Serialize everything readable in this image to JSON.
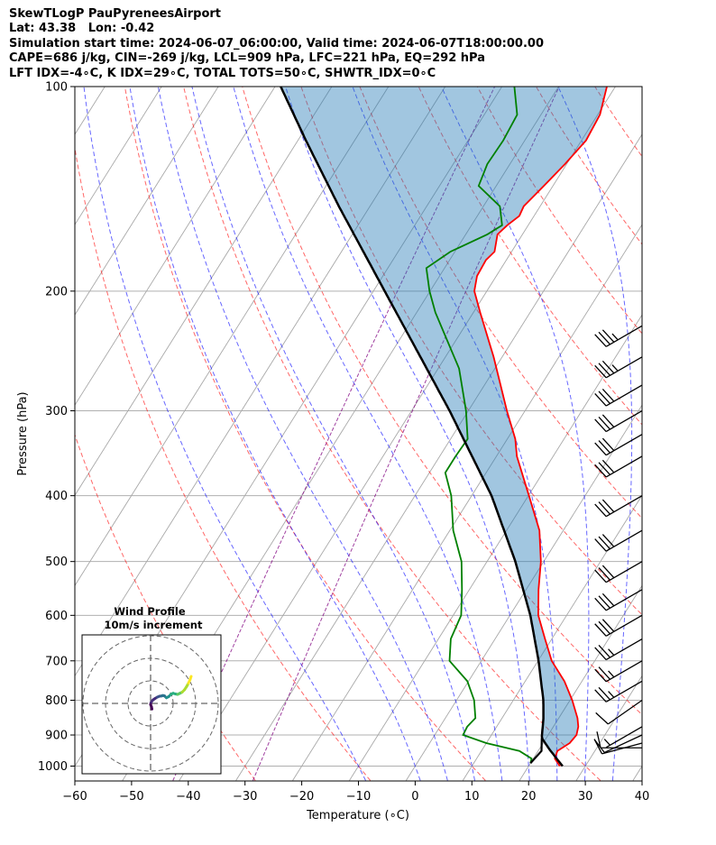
{
  "header": {
    "line1": "SkewTLogP PauPyreneesAirport",
    "line2": "Lat: 43.38   Lon: -0.42",
    "line3": "Simulation start time: 2024-06-07_06:00:00, Valid time: 2024-06-07T18:00:00.00",
    "line4": "CAPE=686 j/kg, CIN=-269 j/kg, LCL=909 hPa, LFC=221 hPa, EQ=292 hPa",
    "line5": "LFT IDX=-4∘C, K IDX=29∘C, TOTAL TOTS=50∘C, SHWTR_IDX=0∘C"
  },
  "colors": {
    "temperature": "#ff0000",
    "dewpoint": "#008000",
    "parcel": "#000000",
    "cape_fill": "#e8595c",
    "cin_fill": "#1f77b4",
    "dry_adiabat": "#ff0000",
    "moist_adiabat": "#0000ff",
    "mixing_ratio": "#800080",
    "isotherm": "#808080"
  },
  "chart_data": {
    "type": "skewt",
    "title": "SkewTLogP PauPyreneesAirport",
    "xlabel": "Temperature (∘C)",
    "ylabel": "Pressure (hPa)",
    "xlim": [
      -60,
      40
    ],
    "ylim": [
      1050,
      100
    ],
    "x_ticks": [
      "−60",
      "−50",
      "−40",
      "−30",
      "−20",
      "−10",
      "0",
      "10",
      "20",
      "30",
      "40"
    ],
    "x_tick_values": [
      -60,
      -50,
      -40,
      -30,
      -20,
      -10,
      0,
      10,
      20,
      30,
      40
    ],
    "y_ticks": [
      "100",
      "200",
      "300",
      "400",
      "500",
      "600",
      "700",
      "800",
      "900",
      "1000"
    ],
    "y_tick_values": [
      100,
      200,
      300,
      400,
      500,
      600,
      700,
      800,
      900,
      1000
    ],
    "skew_deg_per_log": 32.7,
    "dry_adiabats_theta_C": [
      -30,
      -10,
      10,
      30,
      50,
      70,
      90,
      110,
      130,
      150,
      170,
      190,
      210
    ],
    "moist_adiabats_C": [
      -10,
      0,
      5,
      10,
      15,
      20,
      25,
      30,
      35
    ],
    "mixing_ratio_lines_gkg": [
      0.1,
      0.4
    ],
    "temperature": {
      "pressure": [
        1000,
        975,
        950,
        925,
        900,
        875,
        850,
        800,
        750,
        700,
        650,
        600,
        550,
        500,
        450,
        400,
        350,
        330,
        300,
        250,
        215,
        200,
        190,
        180,
        175,
        165,
        160,
        155,
        150,
        140,
        130,
        120,
        110,
        100
      ],
      "temp": [
        25.5,
        23.8,
        23.4,
        24.7,
        25.0,
        24.4,
        23.3,
        20.4,
        16.9,
        12.4,
        8.8,
        5.0,
        2.2,
        -0.5,
        -4.2,
        -9.9,
        -16.4,
        -18.6,
        -23.2,
        -31.5,
        -38.8,
        -42.2,
        -43.4,
        -43.6,
        -43.0,
        -44.4,
        -43.7,
        -42.6,
        -42.9,
        -41.6,
        -40.3,
        -39.2,
        -39.6,
        -41.5
      ]
    },
    "dewpoint": {
      "pressure": [
        990,
        975,
        950,
        925,
        900,
        875,
        850,
        800,
        750,
        700,
        650,
        600,
        550,
        500,
        450,
        400,
        370,
        350,
        330,
        300,
        260,
        215,
        200,
        185,
        175,
        165,
        160,
        150,
        140,
        130,
        120,
        110,
        100
      ],
      "dewpt": [
        20.0,
        19.7,
        16.7,
        10.0,
        5.0,
        4.8,
        5.3,
        3.1,
        -0.2,
        -5.6,
        -7.8,
        -8.6,
        -11.3,
        -14.5,
        -19.4,
        -23.6,
        -27.2,
        -27.2,
        -27.0,
        -30.4,
        -36.3,
        -46.7,
        -50.1,
        -53.2,
        -50.8,
        -46.2,
        -44.6,
        -47.1,
        -53.1,
        -54.0,
        -53.8,
        -54.2,
        -57.8
      ]
    },
    "parcel": {
      "pressure": [
        1000,
        950,
        909,
        850,
        800,
        700,
        600,
        500,
        400,
        300,
        250,
        200,
        150,
        120,
        100
      ],
      "temp": [
        26.0,
        22.2,
        19.2,
        17.3,
        15.3,
        10.1,
        3.6,
        -5.0,
        -16.5,
        -33.3,
        -44.4,
        -58.0,
        -75.5,
        -88.6,
        -99.0
      ]
    },
    "wind_barbs": [
      {
        "pressure": 940,
        "dir_deg": 270,
        "speed_kt": 10
      },
      {
        "pressure": 925,
        "dir_deg": 255,
        "speed_kt": 10
      },
      {
        "pressure": 900,
        "dir_deg": 245,
        "speed_kt": 10
      },
      {
        "pressure": 875,
        "dir_deg": 240,
        "speed_kt": 5
      },
      {
        "pressure": 800,
        "dir_deg": 235,
        "speed_kt": 10
      },
      {
        "pressure": 750,
        "dir_deg": 240,
        "speed_kt": 25
      },
      {
        "pressure": 700,
        "dir_deg": 240,
        "speed_kt": 25
      },
      {
        "pressure": 650,
        "dir_deg": 240,
        "speed_kt": 25
      },
      {
        "pressure": 600,
        "dir_deg": 240,
        "speed_kt": 30
      },
      {
        "pressure": 550,
        "dir_deg": 240,
        "speed_kt": 30
      },
      {
        "pressure": 500,
        "dir_deg": 240,
        "speed_kt": 30
      },
      {
        "pressure": 450,
        "dir_deg": 240,
        "speed_kt": 30
      },
      {
        "pressure": 400,
        "dir_deg": 240,
        "speed_kt": 30
      },
      {
        "pressure": 350,
        "dir_deg": 240,
        "speed_kt": 30
      },
      {
        "pressure": 325,
        "dir_deg": 240,
        "speed_kt": 30
      },
      {
        "pressure": 300,
        "dir_deg": 240,
        "speed_kt": 30
      },
      {
        "pressure": 275,
        "dir_deg": 240,
        "speed_kt": 30
      },
      {
        "pressure": 250,
        "dir_deg": 240,
        "speed_kt": 35
      },
      {
        "pressure": 225,
        "dir_deg": 240,
        "speed_kt": 35
      }
    ],
    "hodograph": {
      "title": "Wind Profile",
      "subtitle": "10m/s increment",
      "u": [
        0.6,
        0.4,
        0.0,
        0.2,
        1.0,
        2.0,
        3.0,
        4.0,
        4.8,
        5.5,
        6.2,
        7.0,
        8.0,
        9.0,
        10.0,
        11.0,
        12.0,
        13.0,
        14.0,
        15.0,
        16.0,
        16.8,
        17.5,
        18.0
      ],
      "v": [
        -2.5,
        -1.5,
        -0.5,
        0.5,
        1.5,
        2.2,
        2.8,
        3.2,
        3.3,
        3.5,
        3.3,
        2.5,
        3.0,
        4.0,
        4.5,
        4.2,
        4.0,
        4.5,
        5.0,
        6.0,
        7.5,
        9.0,
        10.5,
        12.0
      ]
    }
  }
}
